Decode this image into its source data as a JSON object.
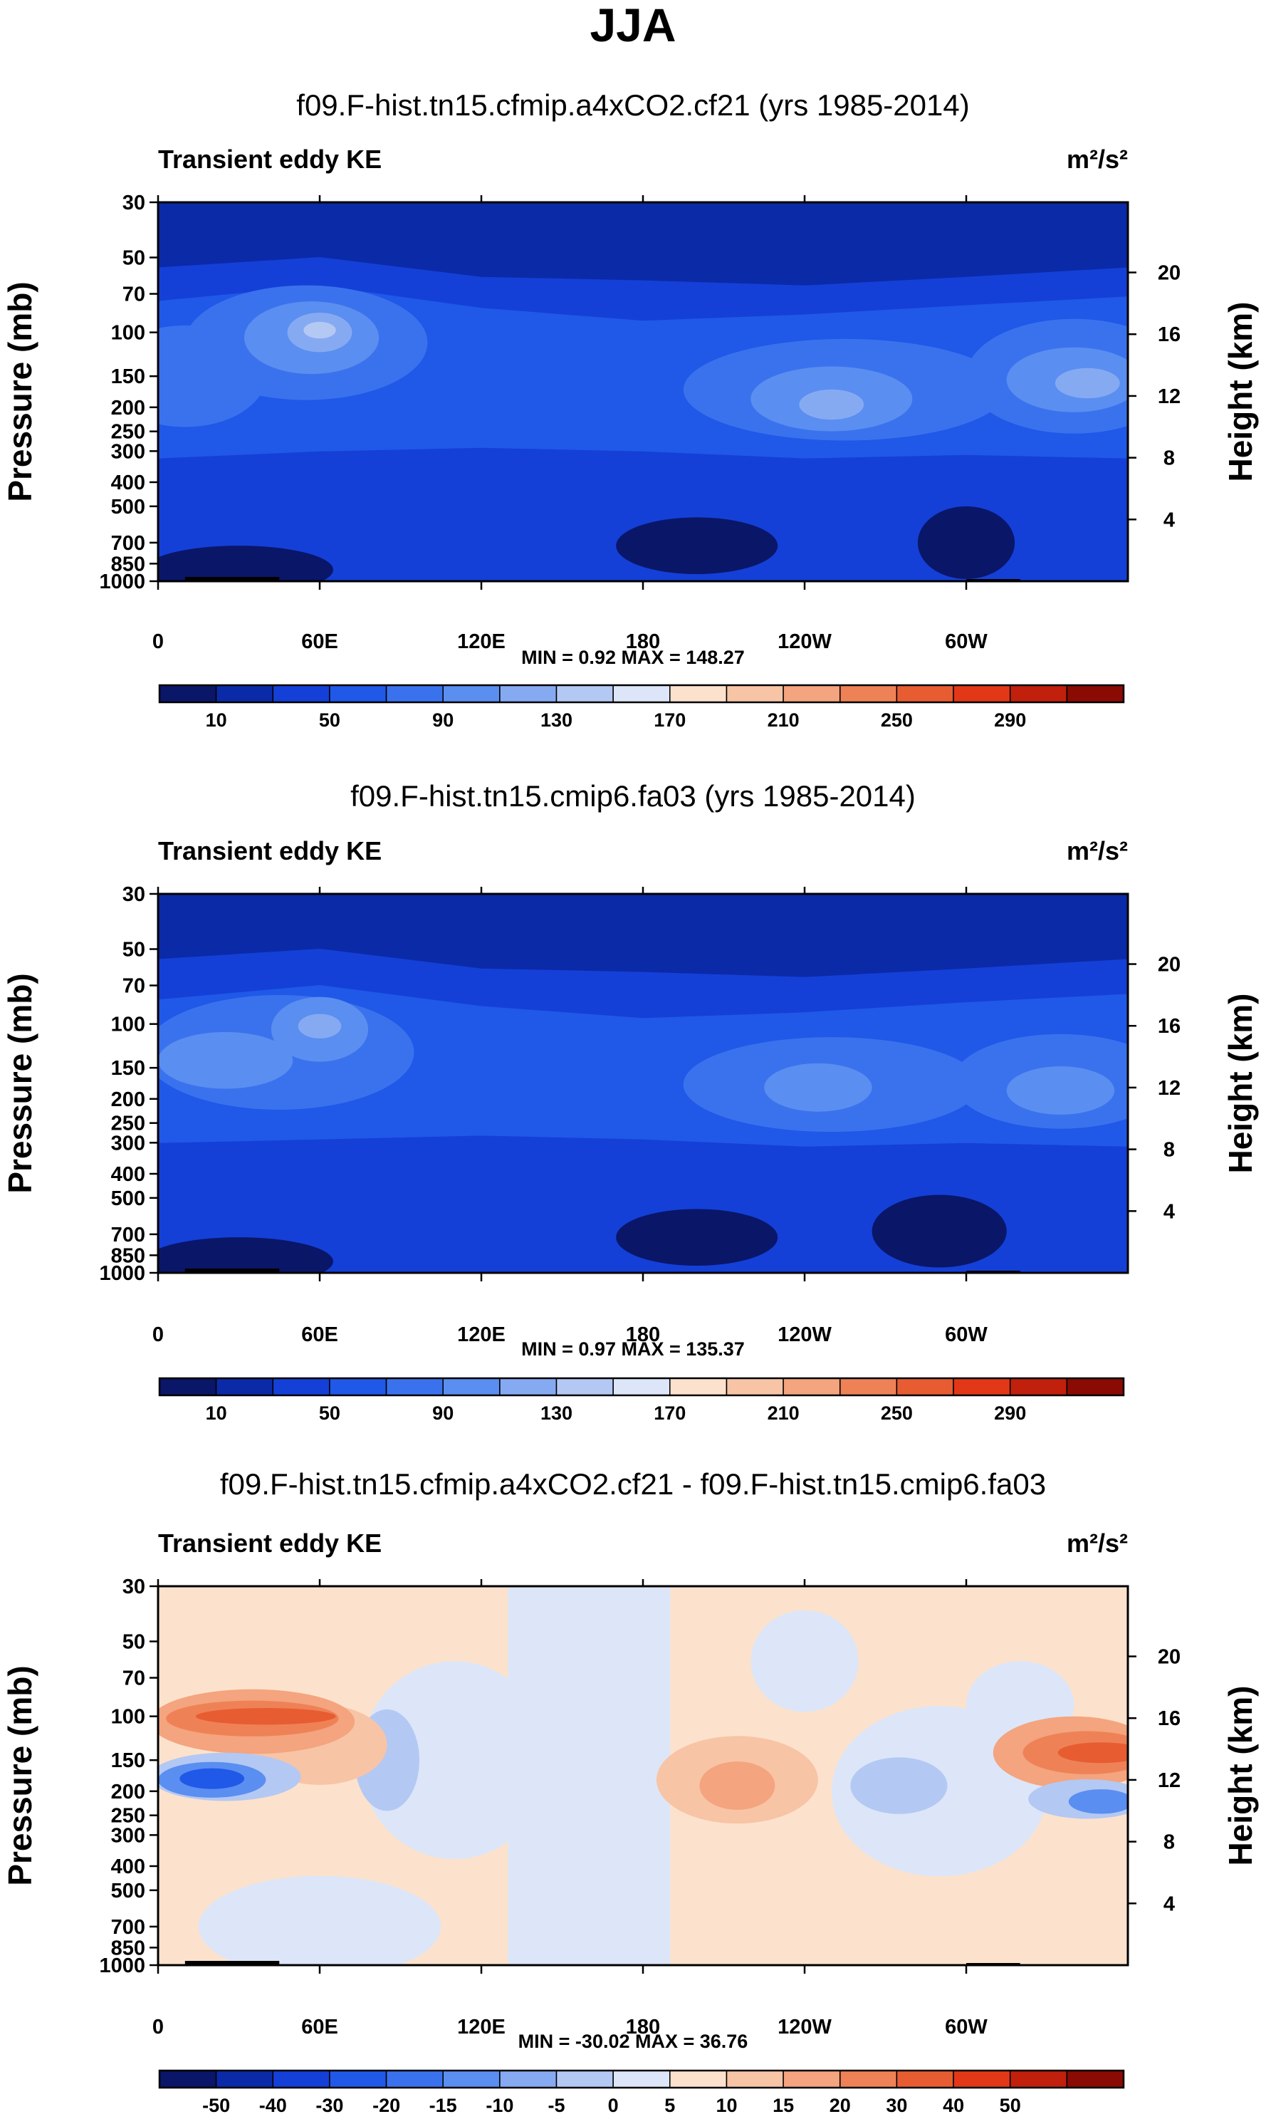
{
  "figure_title": "JJA",
  "chart_data": [
    {
      "type": "contour",
      "id": "panel-1",
      "title": "f09.F-hist.tn15.cfmip.a4xCO2.cf21 (yrs 1985-2014)",
      "left_label": "Transient eddy KE",
      "units_label": "m²/s²",
      "ylabel": "Pressure (mb)",
      "ylabel_right": "Height (km)",
      "xticks": [
        "0",
        "60E",
        "120E",
        "180",
        "120W",
        "60W"
      ],
      "xtick_lon": [
        0,
        60,
        120,
        180,
        240,
        300
      ],
      "xlim": [
        0,
        360
      ],
      "yticks": [
        "30",
        "50",
        "70",
        "100",
        "150",
        "200",
        "250",
        "300",
        "400",
        "500",
        "700",
        "850",
        "1000"
      ],
      "ytick_values": [
        30,
        50,
        70,
        100,
        150,
        200,
        250,
        300,
        400,
        500,
        700,
        850,
        1000
      ],
      "ylim": [
        30,
        1000
      ],
      "height_ticks": [
        "20",
        "16",
        "12",
        "8",
        "4"
      ],
      "height_values": [
        20,
        16,
        12,
        8,
        4
      ],
      "minmax_label": "MIN =   0.92  MAX = 148.27",
      "min": 0.92,
      "max": 148.27,
      "colorbar_labels": [
        "10",
        "50",
        "90",
        "130",
        "170",
        "210",
        "250",
        "290"
      ],
      "colorbar_colors": [
        "#0a1668",
        "#0b2aa8",
        "#1440d8",
        "#2058e8",
        "#3a72ee",
        "#5a8ef0",
        "#86aaf2",
        "#b4c8f4",
        "#dce6f8",
        "#fce2cc",
        "#f8c4a6",
        "#f4a47e",
        "#ee8256",
        "#e85c32",
        "#e23818",
        "#c0200c",
        "#8a0a04"
      ],
      "contours": [
        {
          "level": 1,
          "kind": "band",
          "lons": [
            0,
            360
          ],
          "p_top": 30,
          "p_bottom": 1000
        },
        {
          "level": 2,
          "kind": "band",
          "lons": [
            0,
            60,
            120,
            180,
            240,
            300,
            360
          ],
          "p_top": [
            55,
            50,
            60,
            62,
            65,
            60,
            55
          ],
          "p_bottom": 1000
        },
        {
          "level": 3,
          "kind": "band",
          "lons": [
            0,
            60,
            120,
            180,
            240,
            300,
            360
          ],
          "p_top": [
            75,
            65,
            80,
            90,
            85,
            78,
            72
          ],
          "p_bottom": [
            320,
            300,
            290,
            300,
            320,
            310,
            320
          ]
        },
        {
          "level": 4,
          "kind": "blob",
          "lon": 55,
          "p": 110,
          "wlon": 45,
          "hp": 1.7
        },
        {
          "level": 4,
          "kind": "blob",
          "lon": 255,
          "p": 170,
          "wlon": 60,
          "hp": 1.6
        },
        {
          "level": 4,
          "kind": "blob",
          "lon": 340,
          "p": 150,
          "wlon": 40,
          "hp": 1.7
        },
        {
          "level": 4,
          "kind": "blob",
          "lon": 10,
          "p": 150,
          "wlon": 30,
          "hp": 1.6
        },
        {
          "level": 5,
          "kind": "blob",
          "lon": 57,
          "p": 105,
          "wlon": 25,
          "hp": 1.4
        },
        {
          "level": 5,
          "kind": "blob",
          "lon": 250,
          "p": 185,
          "wlon": 30,
          "hp": 1.35
        },
        {
          "level": 5,
          "kind": "blob",
          "lon": 340,
          "p": 155,
          "wlon": 25,
          "hp": 1.35
        },
        {
          "level": 6,
          "kind": "blob",
          "lon": 60,
          "p": 100,
          "wlon": 12,
          "hp": 1.2
        },
        {
          "level": 6,
          "kind": "blob",
          "lon": 250,
          "p": 195,
          "wlon": 12,
          "hp": 1.15
        },
        {
          "level": 6,
          "kind": "blob",
          "lon": 345,
          "p": 160,
          "wlon": 12,
          "hp": 1.15
        },
        {
          "level": 7,
          "kind": "blob",
          "lon": 60,
          "p": 98,
          "wlon": 6,
          "hp": 1.08
        },
        {
          "level": 0,
          "kind": "blob",
          "lon": 30,
          "p": 900,
          "wlon": 35,
          "hp": 1.25
        },
        {
          "level": 0,
          "kind": "blob",
          "lon": 200,
          "p": 720,
          "wlon": 30,
          "hp": 1.3
        },
        {
          "level": 0,
          "kind": "blob",
          "lon": 300,
          "p": 700,
          "wlon": 18,
          "hp": 1.4
        }
      ]
    },
    {
      "type": "contour",
      "id": "panel-2",
      "title": "f09.F-hist.tn15.cmip6.fa03 (yrs 1985-2014)",
      "left_label": "Transient eddy KE",
      "units_label": "m²/s²",
      "ylabel": "Pressure (mb)",
      "ylabel_right": "Height (km)",
      "xticks": [
        "0",
        "60E",
        "120E",
        "180",
        "120W",
        "60W"
      ],
      "xtick_lon": [
        0,
        60,
        120,
        180,
        240,
        300
      ],
      "xlim": [
        0,
        360
      ],
      "yticks": [
        "30",
        "50",
        "70",
        "100",
        "150",
        "200",
        "250",
        "300",
        "400",
        "500",
        "700",
        "850",
        "1000"
      ],
      "ytick_values": [
        30,
        50,
        70,
        100,
        150,
        200,
        250,
        300,
        400,
        500,
        700,
        850,
        1000
      ],
      "ylim": [
        30,
        1000
      ],
      "height_ticks": [
        "20",
        "16",
        "12",
        "8",
        "4"
      ],
      "height_values": [
        20,
        16,
        12,
        8,
        4
      ],
      "minmax_label": "MIN =   0.97  MAX = 135.37",
      "min": 0.97,
      "max": 135.37,
      "colorbar_labels": [
        "10",
        "50",
        "90",
        "130",
        "170",
        "210",
        "250",
        "290"
      ],
      "colorbar_colors": [
        "#0a1668",
        "#0b2aa8",
        "#1440d8",
        "#2058e8",
        "#3a72ee",
        "#5a8ef0",
        "#86aaf2",
        "#b4c8f4",
        "#dce6f8",
        "#fce2cc",
        "#f8c4a6",
        "#f4a47e",
        "#ee8256",
        "#e85c32",
        "#e23818",
        "#c0200c",
        "#8a0a04"
      ],
      "contours": [
        {
          "level": 1,
          "kind": "band",
          "lons": [
            0,
            360
          ],
          "p_top": 30,
          "p_bottom": 1000
        },
        {
          "level": 2,
          "kind": "band",
          "lons": [
            0,
            60,
            120,
            180,
            240,
            300,
            360
          ],
          "p_top": [
            55,
            50,
            60,
            62,
            65,
            60,
            55
          ],
          "p_bottom": 1000
        },
        {
          "level": 3,
          "kind": "band",
          "lons": [
            0,
            60,
            120,
            180,
            240,
            300,
            360
          ],
          "p_top": [
            80,
            70,
            85,
            95,
            90,
            82,
            76
          ],
          "p_bottom": [
            300,
            290,
            280,
            290,
            310,
            300,
            310
          ]
        },
        {
          "level": 4,
          "kind": "blob",
          "lon": 45,
          "p": 130,
          "wlon": 50,
          "hp": 1.7
        },
        {
          "level": 4,
          "kind": "blob",
          "lon": 250,
          "p": 175,
          "wlon": 55,
          "hp": 1.55
        },
        {
          "level": 4,
          "kind": "blob",
          "lon": 335,
          "p": 170,
          "wlon": 40,
          "hp": 1.55
        },
        {
          "level": 5,
          "kind": "blob",
          "lon": 25,
          "p": 140,
          "wlon": 25,
          "hp": 1.3
        },
        {
          "level": 5,
          "kind": "blob",
          "lon": 60,
          "p": 105,
          "wlon": 18,
          "hp": 1.35
        },
        {
          "level": 5,
          "kind": "blob",
          "lon": 245,
          "p": 180,
          "wlon": 20,
          "hp": 1.25
        },
        {
          "level": 5,
          "kind": "blob",
          "lon": 335,
          "p": 185,
          "wlon": 20,
          "hp": 1.25
        },
        {
          "level": 6,
          "kind": "blob",
          "lon": 60,
          "p": 102,
          "wlon": 8,
          "hp": 1.12
        },
        {
          "level": 0,
          "kind": "blob",
          "lon": 30,
          "p": 900,
          "wlon": 35,
          "hp": 1.25
        },
        {
          "level": 0,
          "kind": "blob",
          "lon": 200,
          "p": 720,
          "wlon": 30,
          "hp": 1.3
        },
        {
          "level": 0,
          "kind": "blob",
          "lon": 290,
          "p": 680,
          "wlon": 25,
          "hp": 1.4
        }
      ]
    },
    {
      "type": "contour",
      "id": "panel-3",
      "title": "f09.F-hist.tn15.cfmip.a4xCO2.cf21 - f09.F-hist.tn15.cmip6.fa03",
      "left_label": "Transient eddy KE",
      "units_label": "m²/s²",
      "ylabel": "Pressure (mb)",
      "ylabel_right": "Height (km)",
      "xticks": [
        "0",
        "60E",
        "120E",
        "180",
        "120W",
        "60W"
      ],
      "xtick_lon": [
        0,
        60,
        120,
        180,
        240,
        300
      ],
      "xlim": [
        0,
        360
      ],
      "yticks": [
        "30",
        "50",
        "70",
        "100",
        "150",
        "200",
        "250",
        "300",
        "400",
        "500",
        "700",
        "850",
        "1000"
      ],
      "ytick_values": [
        30,
        50,
        70,
        100,
        150,
        200,
        250,
        300,
        400,
        500,
        700,
        850,
        1000
      ],
      "ylim": [
        30,
        1000
      ],
      "height_ticks": [
        "20",
        "16",
        "12",
        "8",
        "4"
      ],
      "height_values": [
        20,
        16,
        12,
        8,
        4
      ],
      "minmax_label": "MIN = -30.02  MAX =  36.76",
      "min": -30.02,
      "max": 36.76,
      "colorbar_labels": [
        "-50",
        "-40",
        "-30",
        "-20",
        "-15",
        "-10",
        "-5",
        "0",
        "5",
        "10",
        "15",
        "20",
        "30",
        "40",
        "50"
      ],
      "colorbar_colors": [
        "#0a1668",
        "#0b2aa8",
        "#1440d8",
        "#2058e8",
        "#3a72ee",
        "#5a8ef0",
        "#86aaf2",
        "#b4c8f4",
        "#dce6f8",
        "#fce2cc",
        "#f8c4a6",
        "#f4a47e",
        "#ee8256",
        "#e85c32",
        "#e23818",
        "#c0200c",
        "#8a0a04"
      ],
      "contours": [
        {
          "level": 9,
          "kind": "band",
          "lons": [
            0,
            360
          ],
          "p_top": 30,
          "p_bottom": 1000
        },
        {
          "level": 8,
          "kind": "band",
          "lons": [
            130,
            140,
            150,
            160,
            170,
            180,
            190
          ],
          "p_top": [
            30,
            30,
            30,
            30,
            30,
            30,
            30
          ],
          "p_bottom": [
            1000,
            1000,
            1000,
            1000,
            1000,
            1000,
            1000
          ]
        },
        {
          "level": 8,
          "kind": "blob",
          "lon": 110,
          "p": 150,
          "wlon": 35,
          "hp": 2.5
        },
        {
          "level": 8,
          "kind": "blob",
          "lon": 290,
          "p": 200,
          "wlon": 40,
          "hp": 2.2
        },
        {
          "level": 8,
          "kind": "blob",
          "lon": 60,
          "p": 700,
          "wlon": 45,
          "hp": 1.6
        },
        {
          "level": 8,
          "kind": "blob",
          "lon": 240,
          "p": 60,
          "wlon": 20,
          "hp": 1.6
        },
        {
          "level": 8,
          "kind": "blob",
          "lon": 320,
          "p": 90,
          "wlon": 20,
          "hp": 1.5
        },
        {
          "level": 7,
          "kind": "blob",
          "lon": 85,
          "p": 150,
          "wlon": 12,
          "hp": 1.6
        },
        {
          "level": 7,
          "kind": "blob",
          "lon": 275,
          "p": 190,
          "wlon": 18,
          "hp": 1.3
        },
        {
          "level": 10,
          "kind": "blob",
          "lon": 215,
          "p": 180,
          "wlon": 30,
          "hp": 1.5
        },
        {
          "level": 10,
          "kind": "blob",
          "lon": 60,
          "p": 130,
          "wlon": 25,
          "hp": 1.45
        },
        {
          "level": 11,
          "kind": "blob",
          "lon": 215,
          "p": 190,
          "wlon": 14,
          "hp": 1.25
        },
        {
          "level": 11,
          "kind": "blob",
          "lon": 35,
          "p": 105,
          "wlon": 38,
          "hp": 1.35
        },
        {
          "level": 11,
          "kind": "blob",
          "lon": 340,
          "p": 140,
          "wlon": 30,
          "hp": 1.4
        },
        {
          "level": 12,
          "kind": "blob",
          "lon": 35,
          "p": 102,
          "wlon": 32,
          "hp": 1.18
        },
        {
          "level": 12,
          "kind": "blob",
          "lon": 345,
          "p": 140,
          "wlon": 24,
          "hp": 1.22
        },
        {
          "level": 13,
          "kind": "blob",
          "lon": 40,
          "p": 100,
          "wlon": 26,
          "hp": 1.08
        },
        {
          "level": 13,
          "kind": "blob",
          "lon": 350,
          "p": 140,
          "wlon": 16,
          "hp": 1.1
        },
        {
          "level": 7,
          "kind": "blob",
          "lon": 25,
          "p": 175,
          "wlon": 28,
          "hp": 1.25
        },
        {
          "level": 5,
          "kind": "blob",
          "lon": 20,
          "p": 180,
          "wlon": 20,
          "hp": 1.18
        },
        {
          "level": 3,
          "kind": "blob",
          "lon": 20,
          "p": 178,
          "wlon": 12,
          "hp": 1.1
        },
        {
          "level": 7,
          "kind": "blob",
          "lon": 345,
          "p": 215,
          "wlon": 22,
          "hp": 1.2
        },
        {
          "level": 5,
          "kind": "blob",
          "lon": 350,
          "p": 220,
          "wlon": 12,
          "hp": 1.12
        }
      ]
    }
  ]
}
